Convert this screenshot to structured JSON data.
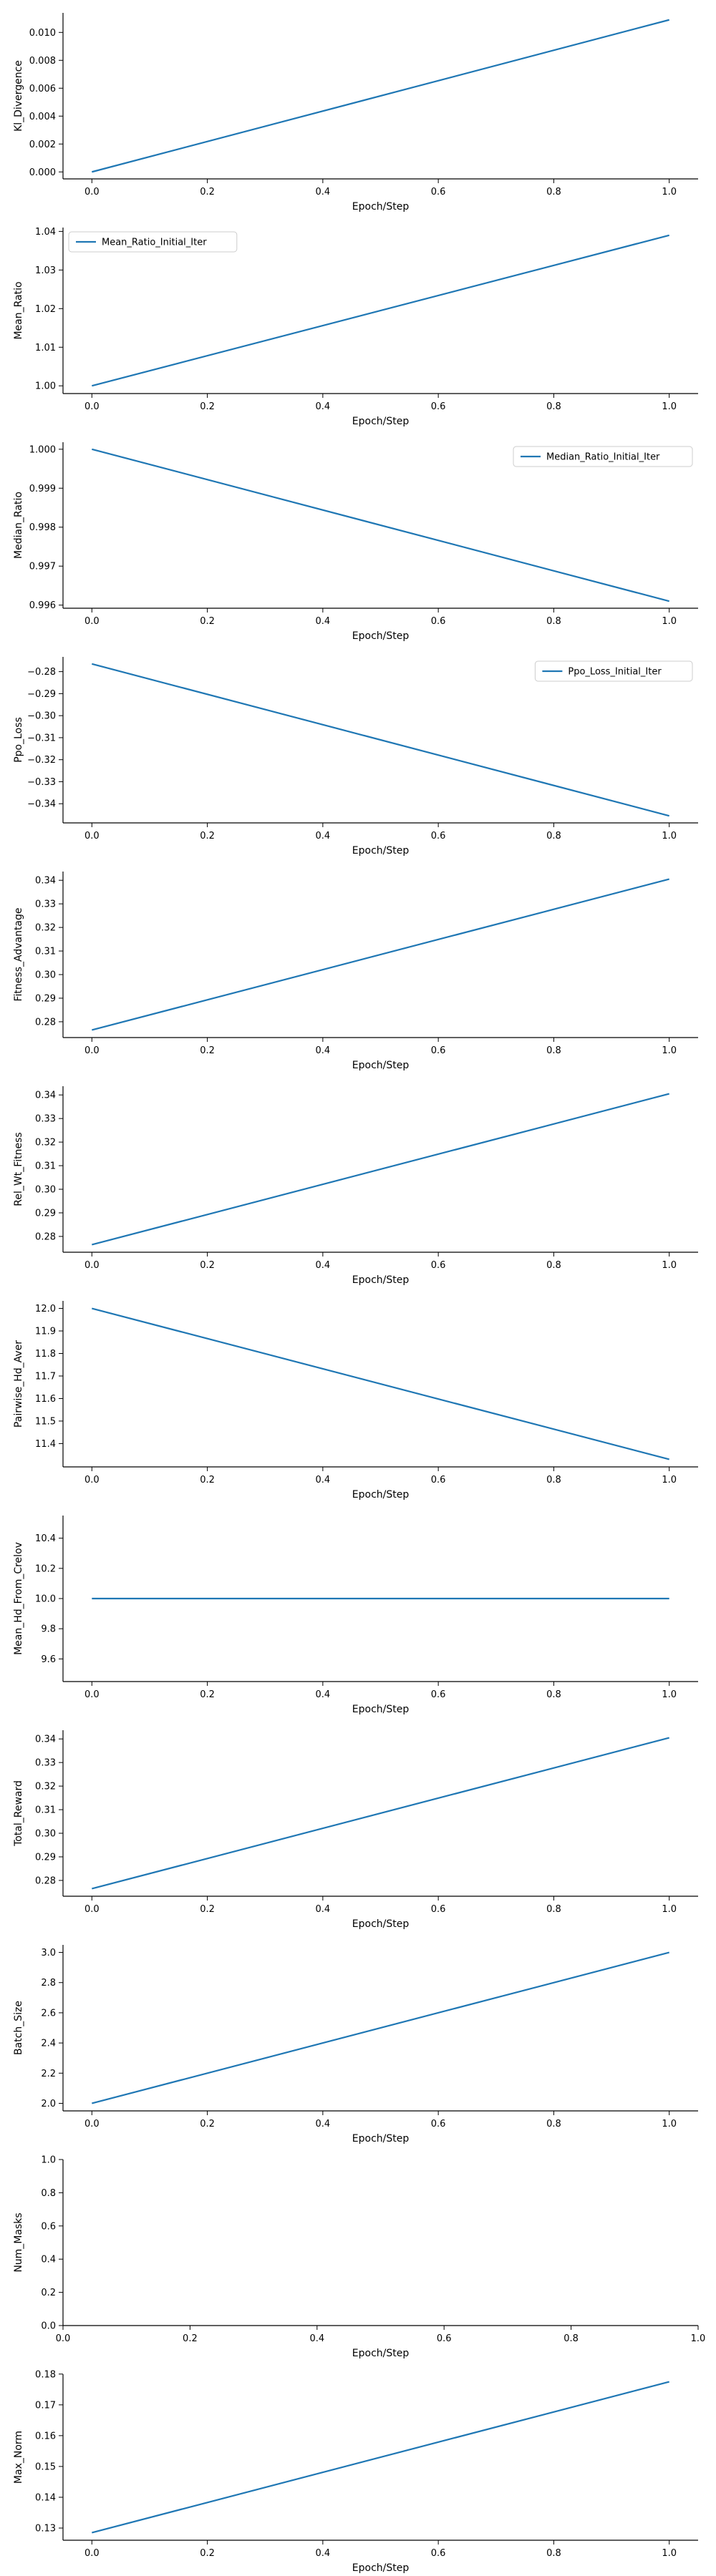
{
  "theme": {
    "line_color": "#1f77b4",
    "axis_color": "#000000"
  },
  "chart_data": [
    {
      "type": "line",
      "xlabel": "Epoch/Step",
      "ylabel": "Kl_Divergence",
      "x": [
        0.0,
        1.0
      ],
      "series": [
        {
          "values": [
            0.0,
            0.0109
          ]
        }
      ],
      "xlim": [
        -0.05,
        1.05
      ],
      "ylim": [
        -0.0005,
        0.0114
      ],
      "xticks": [
        0.0,
        0.2,
        0.4,
        0.6,
        0.8,
        1.0
      ],
      "xtick_labels": [
        "0.0",
        "0.2",
        "0.4",
        "0.6",
        "0.8",
        "1.0"
      ],
      "yticks": [
        0.0,
        0.002,
        0.004,
        0.006,
        0.008,
        0.01
      ],
      "ytick_labels": [
        "0.000",
        "0.002",
        "0.004",
        "0.006",
        "0.008",
        "0.010"
      ],
      "grid": false,
      "legend": null
    },
    {
      "type": "line",
      "xlabel": "Epoch/Step",
      "ylabel": "Mean_Ratio",
      "x": [
        0.0,
        1.0
      ],
      "series": [
        {
          "name": "Mean_Ratio_Initial_Iter",
          "values": [
            1.0,
            1.039
          ]
        }
      ],
      "xlim": [
        -0.05,
        1.05
      ],
      "ylim": [
        0.998,
        1.041
      ],
      "xticks": [
        0.0,
        0.2,
        0.4,
        0.6,
        0.8,
        1.0
      ],
      "xtick_labels": [
        "0.0",
        "0.2",
        "0.4",
        "0.6",
        "0.8",
        "1.0"
      ],
      "yticks": [
        1.0,
        1.01,
        1.02,
        1.03,
        1.04
      ],
      "ytick_labels": [
        "1.00",
        "1.01",
        "1.02",
        "1.03",
        "1.04"
      ],
      "grid": false,
      "legend": "top-left"
    },
    {
      "type": "line",
      "xlabel": "Epoch/Step",
      "ylabel": "Median_Ratio",
      "x": [
        0.0,
        1.0
      ],
      "series": [
        {
          "name": "Median_Ratio_Initial_Iter",
          "values": [
            1.0,
            0.9961
          ]
        }
      ],
      "xlim": [
        -0.05,
        1.05
      ],
      "ylim": [
        0.99592,
        1.00018
      ],
      "xticks": [
        0.0,
        0.2,
        0.4,
        0.6,
        0.8,
        1.0
      ],
      "xtick_labels": [
        "0.0",
        "0.2",
        "0.4",
        "0.6",
        "0.8",
        "1.0"
      ],
      "yticks": [
        0.996,
        0.997,
        0.998,
        0.999,
        1.0
      ],
      "ytick_labels": [
        "0.996",
        "0.997",
        "0.998",
        "0.999",
        "1.000"
      ],
      "grid": false,
      "legend": "top-right"
    },
    {
      "type": "line",
      "xlabel": "Epoch/Step",
      "ylabel": "Ppo_Loss",
      "x": [
        0.0,
        1.0
      ],
      "series": [
        {
          "name": "Ppo_Loss_Initial_Iter",
          "values": [
            -0.2765,
            -0.3455
          ]
        }
      ],
      "xlim": [
        -0.05,
        1.05
      ],
      "ylim": [
        -0.3487,
        -0.2733
      ],
      "xticks": [
        0.0,
        0.2,
        0.4,
        0.6,
        0.8,
        1.0
      ],
      "xtick_labels": [
        "0.0",
        "0.2",
        "0.4",
        "0.6",
        "0.8",
        "1.0"
      ],
      "yticks": [
        -0.28,
        -0.29,
        -0.3,
        -0.31,
        -0.32,
        -0.33,
        -0.34
      ],
      "ytick_labels": [
        "−0.28",
        "−0.29",
        "−0.30",
        "−0.31",
        "−0.32",
        "−0.33",
        "−0.34"
      ],
      "grid": false,
      "legend": "top-right"
    },
    {
      "type": "line",
      "xlabel": "Epoch/Step",
      "ylabel": "Fitness_Advantage",
      "x": [
        0.0,
        1.0
      ],
      "series": [
        {
          "values": [
            0.2765,
            0.3405
          ]
        }
      ],
      "xlim": [
        -0.05,
        1.05
      ],
      "ylim": [
        0.2733,
        0.3437
      ],
      "xticks": [
        0.0,
        0.2,
        0.4,
        0.6,
        0.8,
        1.0
      ],
      "xtick_labels": [
        "0.0",
        "0.2",
        "0.4",
        "0.6",
        "0.8",
        "1.0"
      ],
      "yticks": [
        0.28,
        0.29,
        0.3,
        0.31,
        0.32,
        0.33,
        0.34
      ],
      "ytick_labels": [
        "0.28",
        "0.29",
        "0.30",
        "0.31",
        "0.32",
        "0.33",
        "0.34"
      ],
      "grid": false,
      "legend": null
    },
    {
      "type": "line",
      "xlabel": "Epoch/Step",
      "ylabel": "Rel_Wt_Fitness",
      "x": [
        0.0,
        1.0
      ],
      "series": [
        {
          "values": [
            0.2765,
            0.3405
          ]
        }
      ],
      "xlim": [
        -0.05,
        1.05
      ],
      "ylim": [
        0.2733,
        0.3437
      ],
      "xticks": [
        0.0,
        0.2,
        0.4,
        0.6,
        0.8,
        1.0
      ],
      "xtick_labels": [
        "0.0",
        "0.2",
        "0.4",
        "0.6",
        "0.8",
        "1.0"
      ],
      "yticks": [
        0.28,
        0.29,
        0.3,
        0.31,
        0.32,
        0.33,
        0.34
      ],
      "ytick_labels": [
        "0.28",
        "0.29",
        "0.30",
        "0.31",
        "0.32",
        "0.33",
        "0.34"
      ],
      "grid": false,
      "legend": null
    },
    {
      "type": "line",
      "xlabel": "Epoch/Step",
      "ylabel": "Pairwise_Hd_Aver",
      "x": [
        0.0,
        1.0
      ],
      "series": [
        {
          "values": [
            12.0,
            11.33
          ]
        }
      ],
      "xlim": [
        -0.05,
        1.05
      ],
      "ylim": [
        11.2965,
        12.0335
      ],
      "xticks": [
        0.0,
        0.2,
        0.4,
        0.6,
        0.8,
        1.0
      ],
      "xtick_labels": [
        "0.0",
        "0.2",
        "0.4",
        "0.6",
        "0.8",
        "1.0"
      ],
      "yticks": [
        11.4,
        11.5,
        11.6,
        11.7,
        11.8,
        11.9,
        12.0
      ],
      "ytick_labels": [
        "11.4",
        "11.5",
        "11.6",
        "11.7",
        "11.8",
        "11.9",
        "12.0"
      ],
      "grid": false,
      "legend": null
    },
    {
      "type": "line",
      "xlabel": "Epoch/Step",
      "ylabel": "Mean_Hd_From_Crelov",
      "x": [
        0.0,
        1.0
      ],
      "series": [
        {
          "values": [
            10.0,
            10.0
          ]
        }
      ],
      "xlim": [
        -0.05,
        1.05
      ],
      "ylim": [
        9.45,
        10.55
      ],
      "xticks": [
        0.0,
        0.2,
        0.4,
        0.6,
        0.8,
        1.0
      ],
      "xtick_labels": [
        "0.0",
        "0.2",
        "0.4",
        "0.6",
        "0.8",
        "1.0"
      ],
      "yticks": [
        9.6,
        9.8,
        10.0,
        10.2,
        10.4
      ],
      "ytick_labels": [
        "9.6",
        "9.8",
        "10.0",
        "10.2",
        "10.4"
      ],
      "grid": false,
      "legend": null
    },
    {
      "type": "line",
      "xlabel": "Epoch/Step",
      "ylabel": "Total_Reward",
      "x": [
        0.0,
        1.0
      ],
      "series": [
        {
          "values": [
            0.2765,
            0.3405
          ]
        }
      ],
      "xlim": [
        -0.05,
        1.05
      ],
      "ylim": [
        0.2733,
        0.3437
      ],
      "xticks": [
        0.0,
        0.2,
        0.4,
        0.6,
        0.8,
        1.0
      ],
      "xtick_labels": [
        "0.0",
        "0.2",
        "0.4",
        "0.6",
        "0.8",
        "1.0"
      ],
      "yticks": [
        0.28,
        0.29,
        0.3,
        0.31,
        0.32,
        0.33,
        0.34
      ],
      "ytick_labels": [
        "0.28",
        "0.29",
        "0.30",
        "0.31",
        "0.32",
        "0.33",
        "0.34"
      ],
      "grid": false,
      "legend": null
    },
    {
      "type": "line",
      "xlabel": "Epoch/Step",
      "ylabel": "Batch_Size",
      "x": [
        0.0,
        1.0
      ],
      "series": [
        {
          "values": [
            2.0,
            3.0
          ]
        }
      ],
      "xlim": [
        -0.05,
        1.05
      ],
      "ylim": [
        1.95,
        3.05
      ],
      "xticks": [
        0.0,
        0.2,
        0.4,
        0.6,
        0.8,
        1.0
      ],
      "xtick_labels": [
        "0.0",
        "0.2",
        "0.4",
        "0.6",
        "0.8",
        "1.0"
      ],
      "yticks": [
        2.0,
        2.2,
        2.4,
        2.6,
        2.8,
        3.0
      ],
      "ytick_labels": [
        "2.0",
        "2.2",
        "2.4",
        "2.6",
        "2.8",
        "3.0"
      ],
      "grid": false,
      "legend": null
    },
    {
      "type": "line",
      "xlabel": "Epoch/Step",
      "ylabel": "Num_Masks",
      "x": [],
      "series": [],
      "xlim": [
        0.0,
        1.0
      ],
      "ylim": [
        0.0,
        1.0
      ],
      "xticks": [
        0.0,
        0.2,
        0.4,
        0.6,
        0.8,
        1.0
      ],
      "xtick_labels": [
        "0.0",
        "0.2",
        "0.4",
        "0.6",
        "0.8",
        "1.0"
      ],
      "yticks": [
        0.0,
        0.2,
        0.4,
        0.6,
        0.8,
        1.0
      ],
      "ytick_labels": [
        "0.0",
        "0.2",
        "0.4",
        "0.6",
        "0.8",
        "1.0"
      ],
      "grid": false,
      "legend": null
    },
    {
      "type": "line",
      "xlabel": "Epoch/Step",
      "ylabel": "Max_Norm",
      "x": [
        0.0,
        1.0
      ],
      "series": [
        {
          "values": [
            0.1285,
            0.1775
          ]
        }
      ],
      "xlim": [
        -0.05,
        1.05
      ],
      "ylim": [
        0.12605,
        0.17995
      ],
      "xticks": [
        0.0,
        0.2,
        0.4,
        0.6,
        0.8,
        1.0
      ],
      "xtick_labels": [
        "0.0",
        "0.2",
        "0.4",
        "0.6",
        "0.8",
        "1.0"
      ],
      "yticks": [
        0.13,
        0.14,
        0.15,
        0.16,
        0.17,
        0.18
      ],
      "ytick_labels": [
        "0.13",
        "0.14",
        "0.15",
        "0.16",
        "0.17",
        "0.18"
      ],
      "grid": false,
      "legend": null
    }
  ]
}
